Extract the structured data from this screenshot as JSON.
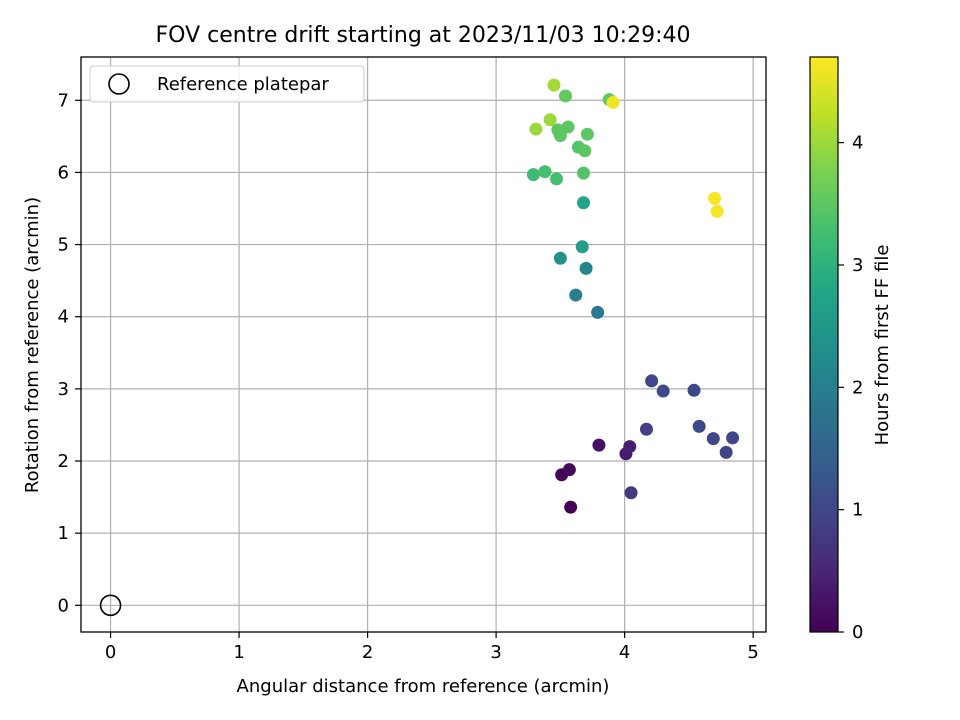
{
  "chart_data": {
    "type": "scatter",
    "title": "FOV centre drift starting at 2023/11/03 10:29:40",
    "xlabel": "Angular distance from reference (arcmin)",
    "ylabel": "Rotation from reference (arcmin)",
    "xlim": [
      -0.23,
      5.1
    ],
    "ylim": [
      -0.37,
      7.6
    ],
    "xticks": [
      0,
      1,
      2,
      3,
      4,
      5
    ],
    "yticks": [
      0,
      1,
      2,
      3,
      4,
      5,
      6,
      7
    ],
    "grid": true,
    "legend": {
      "placement": "top-left",
      "entries": [
        "Reference platepar"
      ]
    },
    "reference_point": {
      "x": 0,
      "y": 0,
      "label": "Reference platepar"
    },
    "colorbar": {
      "label": "Hours from first FF file",
      "colormap": "viridis",
      "range": [
        0,
        4.7
      ],
      "ticks": [
        0,
        1,
        2,
        3,
        4
      ]
    },
    "points": [
      {
        "x": 3.58,
        "y": 1.36,
        "c": 0.0
      },
      {
        "x": 3.51,
        "y": 1.81,
        "c": 0.05
      },
      {
        "x": 3.57,
        "y": 1.88,
        "c": 0.1
      },
      {
        "x": 3.8,
        "y": 2.22,
        "c": 0.2
      },
      {
        "x": 4.01,
        "y": 2.1,
        "c": 0.35
      },
      {
        "x": 4.04,
        "y": 2.2,
        "c": 0.4
      },
      {
        "x": 4.05,
        "y": 1.56,
        "c": 0.8
      },
      {
        "x": 4.17,
        "y": 2.44,
        "c": 0.9
      },
      {
        "x": 4.79,
        "y": 2.12,
        "c": 0.95
      },
      {
        "x": 4.84,
        "y": 2.32,
        "c": 1.0
      },
      {
        "x": 4.69,
        "y": 2.31,
        "c": 1.0
      },
      {
        "x": 4.58,
        "y": 2.48,
        "c": 1.05
      },
      {
        "x": 4.21,
        "y": 3.11,
        "c": 1.0
      },
      {
        "x": 4.3,
        "y": 2.97,
        "c": 1.05
      },
      {
        "x": 4.54,
        "y": 2.98,
        "c": 1.05
      },
      {
        "x": 3.79,
        "y": 4.06,
        "c": 1.9
      },
      {
        "x": 3.62,
        "y": 4.3,
        "c": 2.0
      },
      {
        "x": 3.7,
        "y": 4.67,
        "c": 2.1
      },
      {
        "x": 3.5,
        "y": 4.81,
        "c": 2.4
      },
      {
        "x": 3.67,
        "y": 4.97,
        "c": 2.6
      },
      {
        "x": 3.68,
        "y": 5.58,
        "c": 2.7
      },
      {
        "x": 3.29,
        "y": 5.97,
        "c": 3.2
      },
      {
        "x": 3.38,
        "y": 6.01,
        "c": 3.3
      },
      {
        "x": 3.47,
        "y": 5.91,
        "c": 3.3
      },
      {
        "x": 3.68,
        "y": 5.99,
        "c": 3.4
      },
      {
        "x": 3.64,
        "y": 6.35,
        "c": 3.4
      },
      {
        "x": 3.69,
        "y": 6.3,
        "c": 3.5
      },
      {
        "x": 3.5,
        "y": 6.51,
        "c": 3.5
      },
      {
        "x": 3.48,
        "y": 6.59,
        "c": 3.5
      },
      {
        "x": 3.56,
        "y": 6.63,
        "c": 3.5
      },
      {
        "x": 3.71,
        "y": 6.53,
        "c": 3.5
      },
      {
        "x": 3.54,
        "y": 7.06,
        "c": 3.55
      },
      {
        "x": 3.88,
        "y": 7.01,
        "c": 3.55
      },
      {
        "x": 3.31,
        "y": 6.6,
        "c": 4.0
      },
      {
        "x": 3.42,
        "y": 6.73,
        "c": 4.0
      },
      {
        "x": 3.45,
        "y": 7.21,
        "c": 4.05
      },
      {
        "x": 3.91,
        "y": 6.97,
        "c": 4.6
      },
      {
        "x": 4.7,
        "y": 5.64,
        "c": 4.65
      },
      {
        "x": 4.72,
        "y": 5.46,
        "c": 4.65
      }
    ]
  }
}
